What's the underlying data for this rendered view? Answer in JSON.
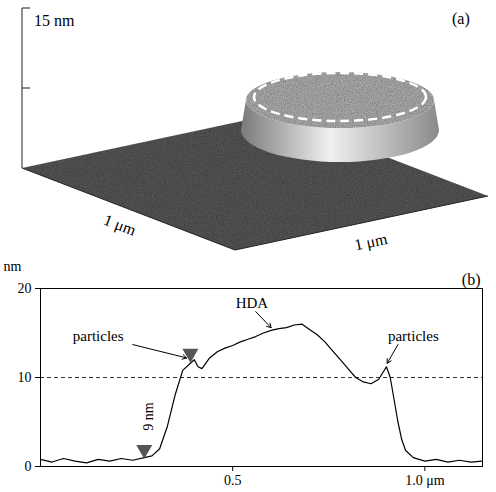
{
  "chart_data": [
    {
      "type": "afm_3d",
      "panel": "(a)",
      "z_scale_label": "15 nm",
      "x_label": "1 μm",
      "y_label": "1 μm"
    },
    {
      "type": "line",
      "panel": "(b)",
      "y_label": "nm",
      "color": "#000000",
      "x": [
        0.0,
        0.03,
        0.06,
        0.09,
        0.12,
        0.15,
        0.18,
        0.21,
        0.24,
        0.27,
        0.29,
        0.31,
        0.33,
        0.35,
        0.37,
        0.39,
        0.4,
        0.41,
        0.42,
        0.44,
        0.46,
        0.48,
        0.5,
        0.52,
        0.54,
        0.56,
        0.58,
        0.6,
        0.62,
        0.64,
        0.66,
        0.68,
        0.7,
        0.72,
        0.74,
        0.76,
        0.78,
        0.8,
        0.82,
        0.84,
        0.86,
        0.88,
        0.89,
        0.9,
        0.91,
        0.92,
        0.93,
        0.94,
        0.95,
        0.97,
        1.0,
        1.03,
        1.06,
        1.09,
        1.12,
        1.15
      ],
      "values": [
        0.8,
        0.5,
        0.9,
        0.6,
        0.4,
        0.8,
        0.6,
        0.9,
        0.7,
        1.0,
        1.2,
        2.0,
        4.5,
        8.0,
        10.8,
        11.6,
        12.0,
        11.2,
        11.0,
        12.2,
        12.9,
        13.3,
        13.6,
        14.0,
        14.3,
        14.6,
        15.0,
        15.3,
        15.5,
        15.6,
        15.9,
        16.0,
        15.4,
        14.8,
        14.0,
        13.0,
        12.0,
        11.0,
        10.0,
        9.5,
        9.3,
        9.8,
        10.5,
        11.2,
        10.0,
        7.5,
        5.0,
        3.0,
        1.8,
        1.0,
        0.6,
        0.8,
        0.5,
        0.7,
        0.5,
        0.6
      ],
      "xlim": [
        0,
        1.15
      ],
      "xticks": [
        0.5,
        {
          "value": 1.0,
          "label": "1.0 μm"
        }
      ],
      "ylim": [
        0,
        20
      ],
      "yticks": [
        0,
        10,
        20
      ],
      "reference_line": {
        "y": 10,
        "line_style": "dashed"
      },
      "marker": "triangle",
      "markers": [
        {
          "x": 0.27,
          "y": 1.9
        },
        {
          "x": 0.39,
          "y": 12.7
        }
      ],
      "annotations": [
        {
          "text": "particles",
          "x": 0.15,
          "y": 14.6,
          "from": [
            0.24,
            13.7
          ],
          "to": [
            0.38,
            12.2
          ]
        },
        {
          "text": "HDA",
          "x": 0.55,
          "y": 18.3,
          "from": [
            0.56,
            17.4
          ],
          "to": [
            0.6,
            15.6
          ]
        },
        {
          "text": "particles",
          "x": 0.97,
          "y": 14.6,
          "from": [
            0.93,
            13.7
          ],
          "to": [
            0.902,
            11.6
          ]
        },
        {
          "text": "9 nm",
          "x": 0.28,
          "y": 5.6,
          "orientation": "vertical"
        }
      ]
    }
  ]
}
